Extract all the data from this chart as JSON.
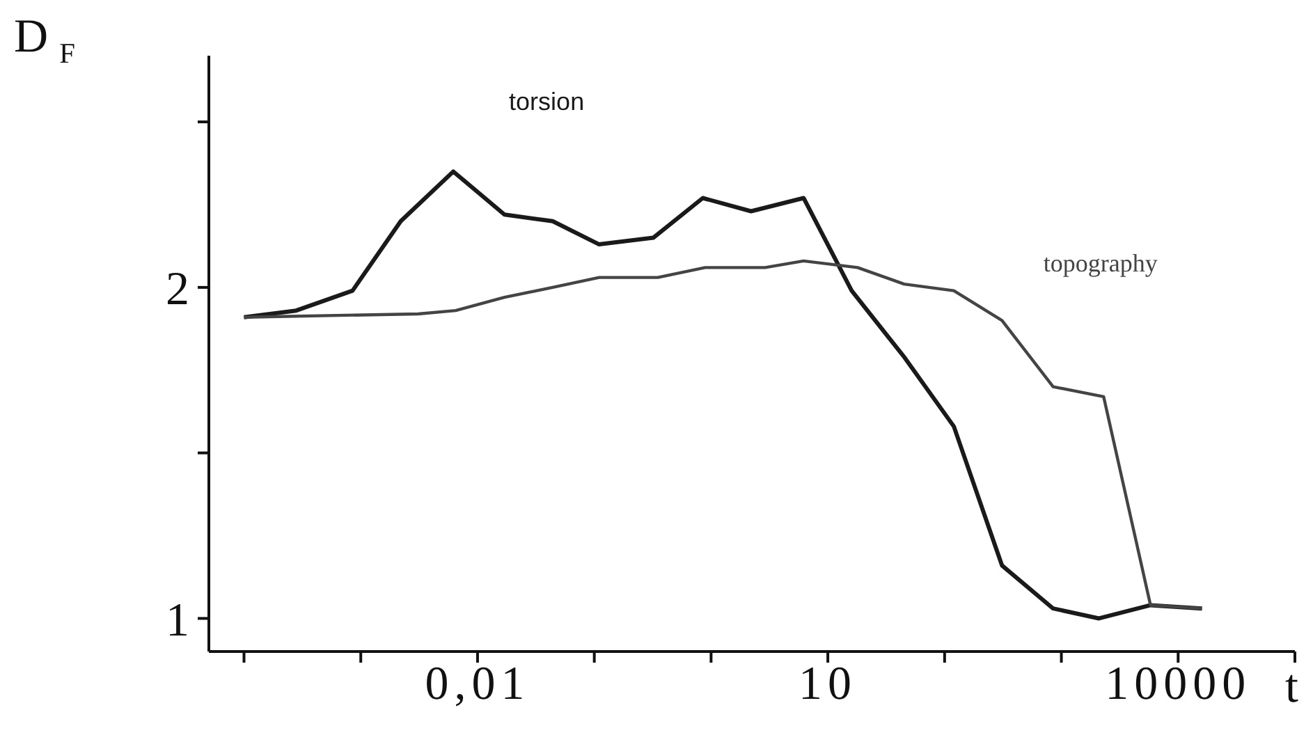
{
  "chart_data": {
    "type": "line",
    "xlabel": "t",
    "ylabel": "D$_{F}$",
    "log": "x",
    "xlim": [
      5e-05,
      100000
    ],
    "ylim": [
      0.9,
      2.7
    ],
    "xticks": [
      {
        "value": 0.0001,
        "label": null
      },
      {
        "value": 0.001,
        "label": null
      },
      {
        "value": 0.01,
        "label": "0,01"
      },
      {
        "value": 0.1,
        "label": null
      },
      {
        "value": 1,
        "label": null
      },
      {
        "value": 10,
        "label": "10"
      },
      {
        "value": 100,
        "label": null
      },
      {
        "value": 1000,
        "label": null
      },
      {
        "value": 10000,
        "label": "10000"
      },
      {
        "value": 100000,
        "label": null
      }
    ],
    "yticks": [
      1,
      {
        "value": 1.5,
        "label": null
      },
      2,
      {
        "value": 2.5,
        "label": null
      }
    ],
    "marker": "none",
    "line_style": "solid",
    "series": [
      {
        "name": "torsion",
        "color": "#1a1a1a",
        "x": [
          0.0001,
          0.00028,
          0.00085,
          0.0022,
          0.0062,
          0.017,
          0.044,
          0.11,
          0.32,
          0.85,
          2.2,
          6.2,
          16,
          45,
          120,
          310,
          850,
          2100,
          5800,
          16000
        ],
        "values": [
          1.91,
          1.93,
          1.99,
          2.2,
          2.35,
          2.22,
          2.2,
          2.13,
          2.15,
          2.27,
          2.23,
          2.27,
          1.99,
          1.79,
          1.58,
          1.16,
          1.03,
          1.0,
          1.04,
          1.03
        ]
      },
      {
        "name": "topography",
        "color": "#444444",
        "x": [
          0.0001,
          0.0031,
          0.0065,
          0.017,
          0.044,
          0.11,
          0.35,
          0.89,
          2.9,
          6.2,
          18,
          45,
          120,
          310,
          850,
          2300,
          5800,
          16000
        ],
        "values": [
          1.91,
          1.92,
          1.93,
          1.97,
          2.0,
          2.03,
          2.03,
          2.06,
          2.06,
          2.08,
          2.06,
          2.01,
          1.99,
          1.9,
          1.7,
          1.67,
          1.04,
          1.03
        ]
      }
    ]
  }
}
